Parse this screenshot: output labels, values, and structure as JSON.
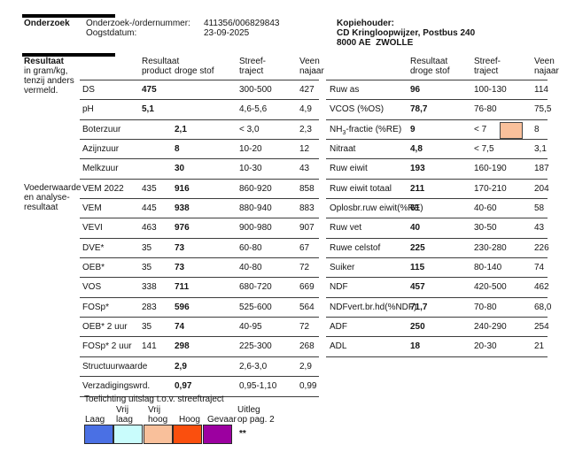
{
  "report": {
    "section_onderzoek": {
      "title": "Onderzoek",
      "fields": [
        {
          "label": "Onderzoek-/ordernummer:",
          "value": "411356/006829843"
        },
        {
          "label": "Oogstdatum:",
          "value": "23-09-2025"
        }
      ],
      "kopiehouder": {
        "title": "Kopiehouder:",
        "line1": "CD Kringloopwijzer, Postbus 240",
        "line2": "8000 AE  ZWOLLE"
      }
    },
    "section_resultaat": {
      "title": "Resultaat",
      "subtitle_lines": [
        "in gram/kg,",
        "tenzij anders",
        "vermeld."
      ],
      "sidebar_note_lines": [
        "Voederwaarde",
        "en analyse-",
        "resultaat"
      ]
    },
    "left_table": {
      "header": {
        "result_line1": "Resultaat",
        "col_product": "product",
        "col_ds": "droge stof",
        "streef_line1": "Streef-",
        "streef_line2": "traject",
        "veen_line1": "Veen",
        "veen_line2": "najaar"
      },
      "rows": [
        {
          "label": "DS",
          "product": "475",
          "product_bold": true,
          "ds": "",
          "streef": "300-500",
          "veen": "427"
        },
        {
          "label": "pH",
          "product": "5,1",
          "product_bold": true,
          "ds": "",
          "streef": "4,6-5,6",
          "veen": "4,9"
        },
        {
          "label": "Boterzuur",
          "product": "",
          "product_bold": false,
          "ds": "2,1",
          "streef": "< 3,0",
          "veen": "2,3"
        },
        {
          "label": "Azijnzuur",
          "product": "",
          "product_bold": false,
          "ds": "8",
          "streef": "10-20",
          "veen": "12"
        },
        {
          "label": "Melkzuur",
          "product": "",
          "product_bold": false,
          "ds": "30",
          "streef": "10-30",
          "veen": "43"
        },
        {
          "label": "VEM 2022",
          "product": "435",
          "product_bold": false,
          "ds": "916",
          "streef": "860-920",
          "veen": "858"
        },
        {
          "label": "VEM",
          "product": "445",
          "product_bold": false,
          "ds": "938",
          "streef": "880-940",
          "veen": "883"
        },
        {
          "label": "VEVI",
          "product": "463",
          "product_bold": false,
          "ds": "976",
          "streef": "900-980",
          "veen": "907"
        },
        {
          "label": "DVE*",
          "product": "35",
          "product_bold": false,
          "ds": "73",
          "streef": "60-80",
          "veen": "67"
        },
        {
          "label": "OEB*",
          "product": "35",
          "product_bold": false,
          "ds": "73",
          "streef": "40-80",
          "veen": "72"
        },
        {
          "label": "VOS",
          "product": "338",
          "product_bold": false,
          "ds": "711",
          "streef": "680-720",
          "veen": "669"
        },
        {
          "label": "FOSp*",
          "product": "283",
          "product_bold": false,
          "ds": "596",
          "streef": "525-600",
          "veen": "564"
        },
        {
          "label": "OEB* 2 uur",
          "product": "35",
          "product_bold": false,
          "ds": "74",
          "streef": "40-95",
          "veen": "72"
        },
        {
          "label": "FOSp* 2 uur",
          "product": "141",
          "product_bold": false,
          "ds": "298",
          "streef": "225-300",
          "veen": "268"
        },
        {
          "label": "Structuurwaarde",
          "product": "",
          "product_bold": false,
          "ds": "2,9",
          "streef": "2,6-3,0",
          "veen": "2,9"
        },
        {
          "label": "Verzadigingswrd.",
          "product": "",
          "product_bold": false,
          "ds": "0,97",
          "streef": "0,95-1,10",
          "veen": "0,99"
        }
      ]
    },
    "right_table": {
      "header": {
        "result_line1": "Resultaat",
        "result_line2": "droge stof",
        "streef_line1": "Streef-",
        "streef_line2": "traject",
        "veen_line1": "Veen",
        "veen_line2": "najaar"
      },
      "rows": [
        {
          "label": "Ruw as",
          "value": "96",
          "streef": "100-130",
          "veen": "114"
        },
        {
          "label": "VCOS (%OS)",
          "value": "78,7",
          "streef": "76-80",
          "veen": "75,5"
        },
        {
          "label": {
            "pre": "NH",
            "sub": "3",
            "post": "-fractie (%RE)"
          },
          "value": "9",
          "streef": "< 7",
          "veen": "8",
          "flag_color": "#f9c09b"
        },
        {
          "label": "Nitraat",
          "value": "4,8",
          "streef": "< 7,5",
          "veen": "3,1"
        },
        {
          "label": "Ruw eiwit",
          "value": "193",
          "streef": "160-190",
          "veen": "187"
        },
        {
          "label": "Ruw eiwit totaal",
          "value": "211",
          "streef": "170-210",
          "veen": "204"
        },
        {
          "label": "Oplosbr.ruw eiwit(%RE)",
          "value": "61",
          "streef": "40-60",
          "veen": "58"
        },
        {
          "label": "Ruw vet",
          "value": "40",
          "streef": "30-50",
          "veen": "43"
        },
        {
          "label": "Ruwe celstof",
          "value": "225",
          "streef": "230-280",
          "veen": "226"
        },
        {
          "label": "Suiker",
          "value": "115",
          "streef": "80-140",
          "veen": "74"
        },
        {
          "label": "NDF",
          "value": "457",
          "streef": "420-500",
          "veen": "462"
        },
        {
          "label": "NDFvert.br.hd(%NDF)",
          "value": "71,7",
          "streef": "70-80",
          "veen": "68,0"
        },
        {
          "label": "ADF",
          "value": "250",
          "streef": "240-290",
          "veen": "254"
        },
        {
          "label": "ADL",
          "value": "18",
          "streef": "20-30",
          "veen": "21"
        }
      ]
    },
    "legend": {
      "title": "Toelichting uitslag t.o.v. streeftraject",
      "items": [
        {
          "line1": "",
          "line2": "Laag",
          "color": "#4a70e4"
        },
        {
          "line1": "Vrij",
          "line2": "laag",
          "color": "#c9fcfc"
        },
        {
          "line1": "Vrij",
          "line2": "hoog",
          "color": "#f9c09b"
        },
        {
          "line1": "",
          "line2": "Hoog",
          "color": "#fa4f0e"
        },
        {
          "line1": "",
          "line2": "Gevaar",
          "color": "#9c00a0"
        }
      ],
      "note_line1": "Uitleg",
      "note_line2": "op pag. 2",
      "stars": "**"
    }
  }
}
